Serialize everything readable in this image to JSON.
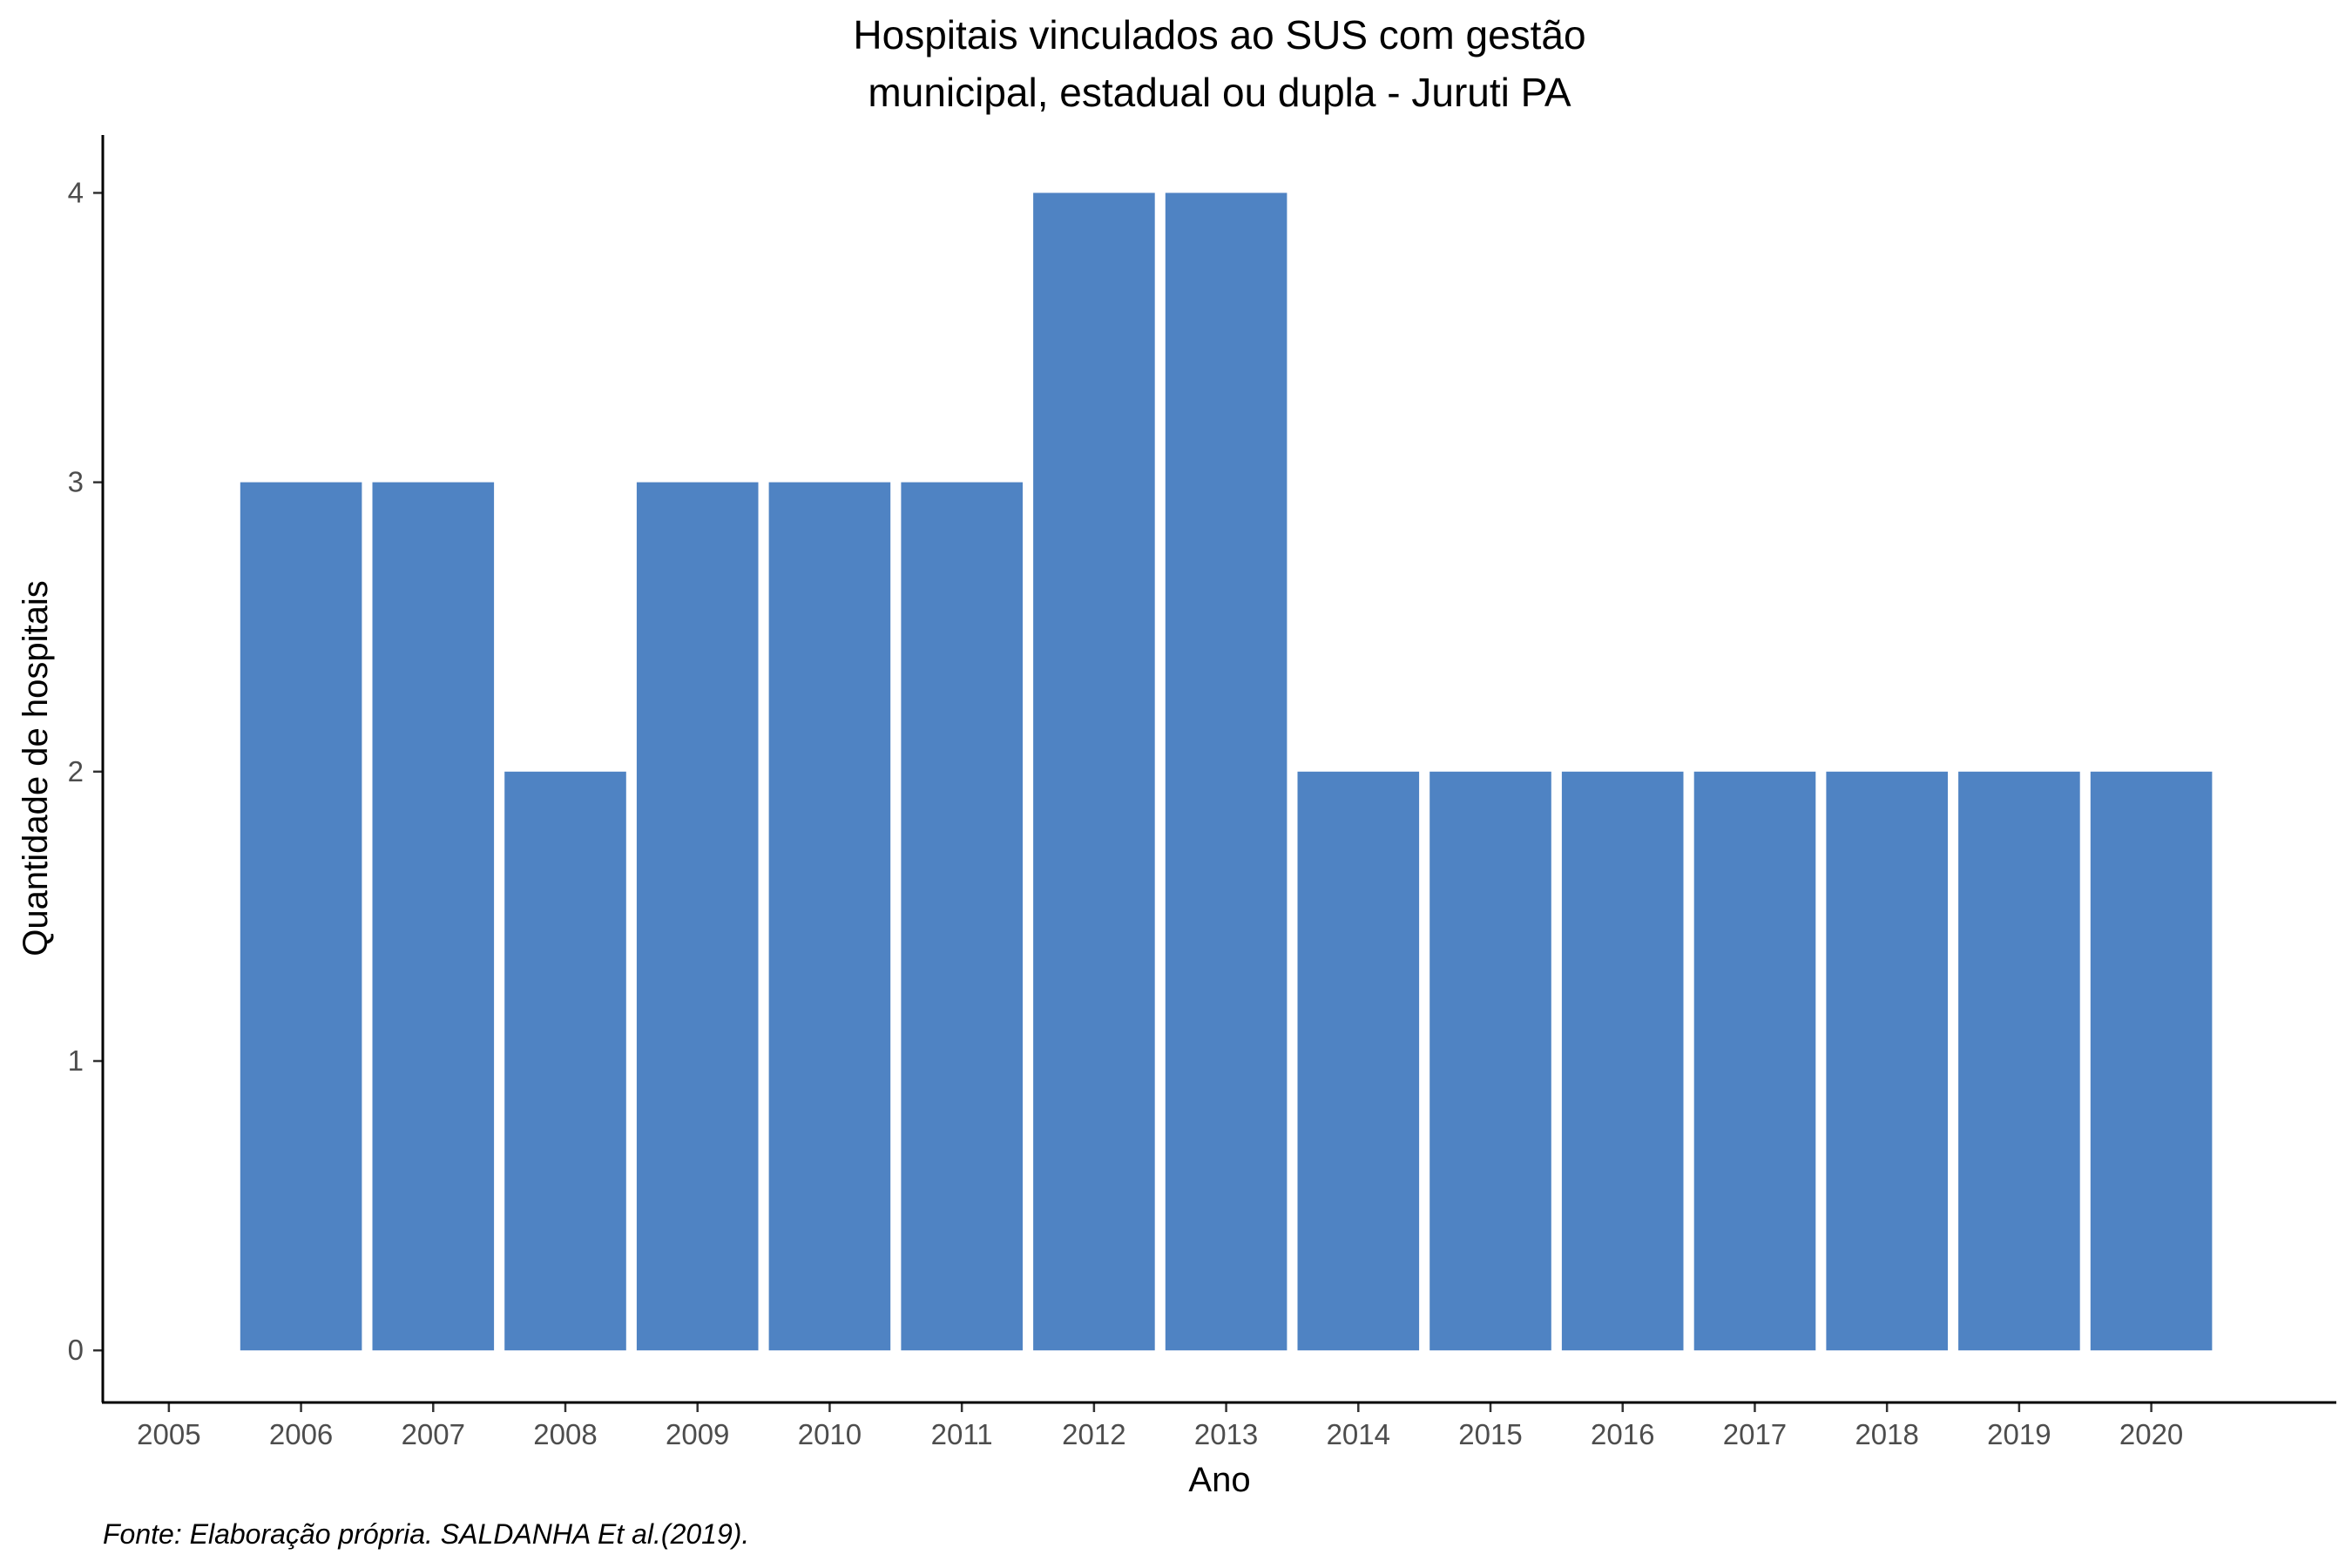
{
  "chart_data": {
    "type": "bar",
    "title_lines": [
      "Hospitais vinculados ao SUS com gestão",
      "municipal, estadual ou dupla -  Juruti PA"
    ],
    "xlabel": "Ano",
    "ylabel": "Quantidade de hospitais",
    "caption": "Fonte: Elaboração própria. SALDANHA Et al.(2019).",
    "x_ticks": [
      "2005",
      "2006",
      "2007",
      "2008",
      "2009",
      "2010",
      "2011",
      "2012",
      "2013",
      "2014",
      "2015",
      "2016",
      "2017",
      "2018",
      "2019",
      "2020"
    ],
    "y_ticks": [
      "0",
      "1",
      "2",
      "3",
      "4"
    ],
    "xlim": [
      2004.5,
      2021.4
    ],
    "ylim": [
      -0.18,
      4.2
    ],
    "categories": [
      2006,
      2007,
      2008,
      2009,
      2010,
      2011,
      2012,
      2013,
      2014,
      2015,
      2016,
      2017,
      2018,
      2019,
      2020
    ],
    "values": [
      3,
      3,
      2,
      3,
      3,
      3,
      4,
      4,
      2,
      2,
      2,
      2,
      2,
      2,
      2
    ],
    "bar_color": "#4F83C3",
    "grid": false,
    "legend": "none"
  }
}
